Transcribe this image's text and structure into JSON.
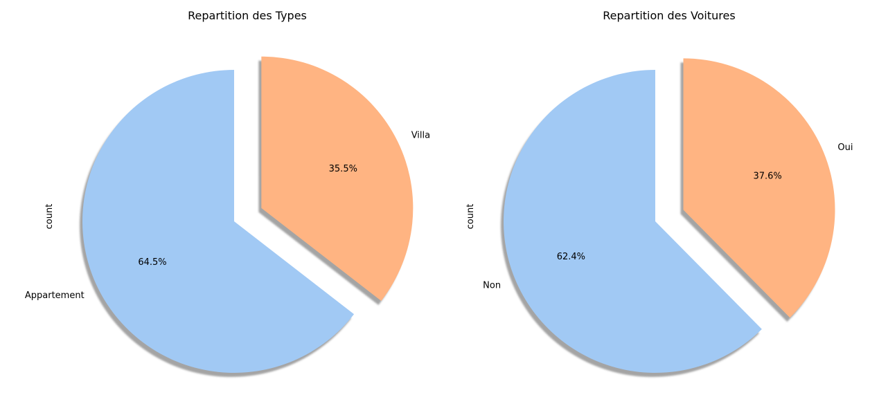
{
  "chart_data": [
    {
      "type": "pie",
      "title": "Repartition des Types",
      "ylabel": "count",
      "start_angle_deg": 90,
      "shadow": true,
      "categories": [
        "Appartement",
        "Villa"
      ],
      "values": [
        64.5,
        35.5
      ],
      "labels": [
        "64.5%",
        "35.5%"
      ],
      "explode": [
        0,
        0.2
      ],
      "colors": [
        "#a1c9f4",
        "#ffb482"
      ]
    },
    {
      "type": "pie",
      "title": "Repartition des Voitures",
      "ylabel": "count",
      "start_angle_deg": 90,
      "shadow": true,
      "categories": [
        "Non",
        "Oui"
      ],
      "values": [
        62.4,
        37.6
      ],
      "labels": [
        "62.4%",
        "37.6%"
      ],
      "explode": [
        0,
        0.2
      ],
      "colors": [
        "#a1c9f4",
        "#ffb482"
      ]
    }
  ]
}
